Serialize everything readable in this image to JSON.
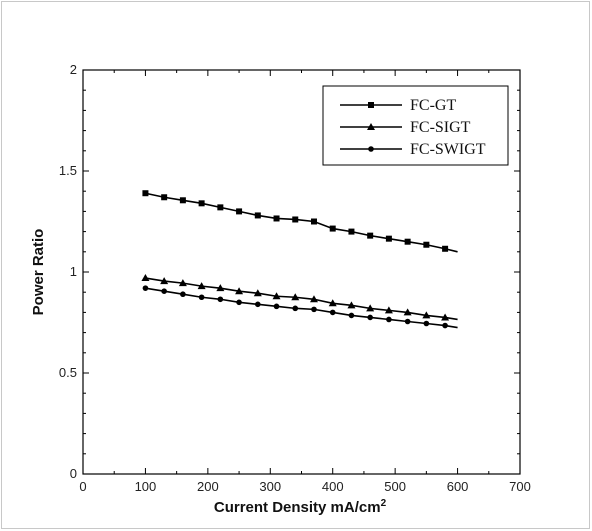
{
  "chart_data": {
    "type": "line",
    "xlabel_main": "Current Density mA/cm",
    "xlabel_superscript": "2",
    "ylabel": "Power Ratio",
    "xlim": [
      0,
      700
    ],
    "ylim": [
      0,
      2
    ],
    "xticks": [
      0,
      100,
      200,
      300,
      400,
      500,
      600,
      700
    ],
    "yticks": [
      0,
      0.5,
      1,
      1.5,
      2
    ],
    "xtick_labels": [
      "0",
      "100",
      "200",
      "300",
      "400",
      "500",
      "600",
      "700"
    ],
    "ytick_labels": [
      "0",
      "0.5",
      "1",
      "1.5",
      "2"
    ],
    "grid": false,
    "legend_position": "top-right",
    "series": [
      {
        "name": "FC-GT",
        "marker": "square",
        "x": [
          100,
          130,
          160,
          190,
          220,
          250,
          280,
          310,
          340,
          370,
          400,
          430,
          460,
          490,
          520,
          550,
          580,
          600
        ],
        "y": [
          1.39,
          1.37,
          1.355,
          1.34,
          1.32,
          1.3,
          1.28,
          1.265,
          1.26,
          1.25,
          1.215,
          1.2,
          1.18,
          1.165,
          1.15,
          1.135,
          1.115,
          1.1
        ]
      },
      {
        "name": "FC-SIGT",
        "marker": "triangle",
        "x": [
          100,
          130,
          160,
          190,
          220,
          250,
          280,
          310,
          340,
          370,
          400,
          430,
          460,
          490,
          520,
          550,
          580,
          600
        ],
        "y": [
          0.97,
          0.955,
          0.945,
          0.93,
          0.92,
          0.905,
          0.895,
          0.88,
          0.875,
          0.865,
          0.845,
          0.835,
          0.82,
          0.81,
          0.8,
          0.785,
          0.775,
          0.765
        ]
      },
      {
        "name": "FC-SWIGT",
        "marker": "circle",
        "x": [
          100,
          130,
          160,
          190,
          220,
          250,
          280,
          310,
          340,
          370,
          400,
          430,
          460,
          490,
          520,
          550,
          580,
          600
        ],
        "y": [
          0.92,
          0.905,
          0.89,
          0.875,
          0.865,
          0.85,
          0.84,
          0.83,
          0.82,
          0.815,
          0.8,
          0.785,
          0.775,
          0.765,
          0.755,
          0.745,
          0.735,
          0.725
        ]
      }
    ]
  }
}
